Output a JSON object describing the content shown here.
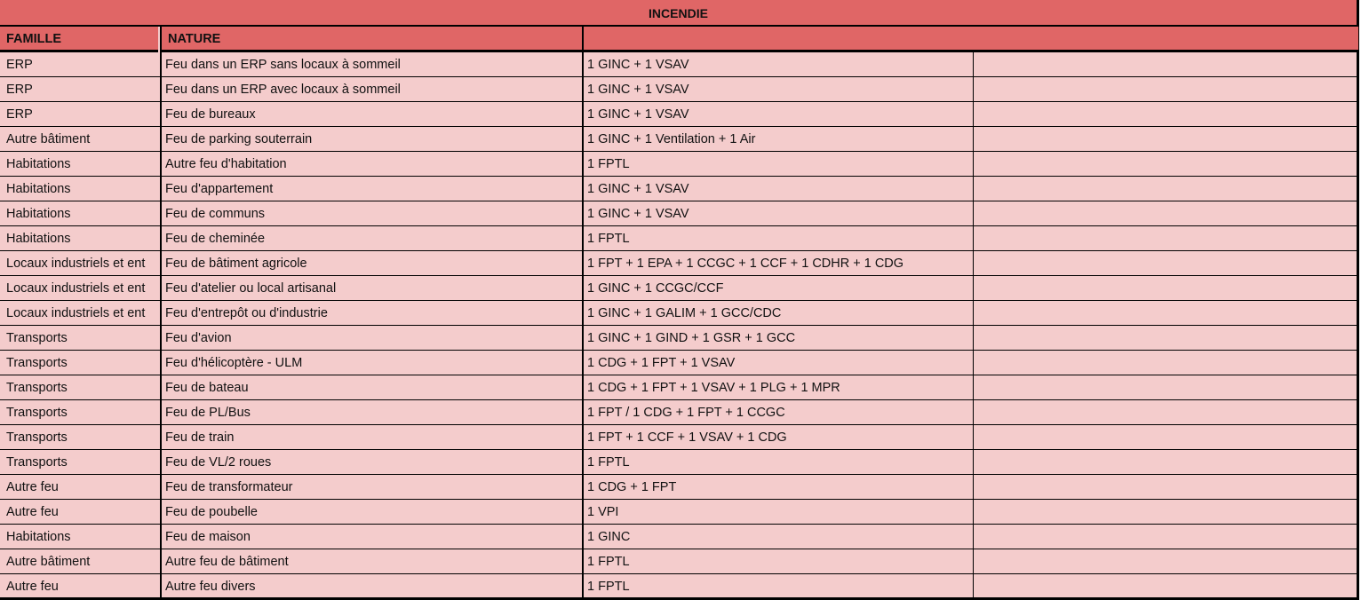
{
  "title": "INCENDIE",
  "headers": {
    "famille": "FAMILLE",
    "nature": "NATURE",
    "moyens": ""
  },
  "colors": {
    "header_bg": "#e06666",
    "row_bg": "#f4cccc",
    "border": "#000000"
  },
  "rows": [
    {
      "famille": "ERP",
      "nature": "Feu dans un ERP sans locaux à sommeil",
      "moyens": "1 GINC + 1 VSAV",
      "extra": ""
    },
    {
      "famille": "ERP",
      "nature": "Feu dans un ERP avec locaux à sommeil",
      "moyens": "1 GINC + 1 VSAV",
      "extra": ""
    },
    {
      "famille": "ERP",
      "nature": "Feu de bureaux",
      "moyens": "1 GINC + 1 VSAV",
      "extra": ""
    },
    {
      "famille": "Autre bâtiment",
      "nature": "Feu de parking souterrain",
      "moyens": "1 GINC + 1 Ventilation + 1 Air",
      "extra": ""
    },
    {
      "famille": "Habitations",
      "nature": "Autre feu d'habitation",
      "moyens": "1 FPTL",
      "extra": ""
    },
    {
      "famille": "Habitations",
      "nature": "Feu d'appartement",
      "moyens": "1 GINC + 1 VSAV",
      "extra": ""
    },
    {
      "famille": "Habitations",
      "nature": "Feu de communs",
      "moyens": "1 GINC + 1 VSAV",
      "extra": ""
    },
    {
      "famille": "Habitations",
      "nature": "Feu de cheminée",
      "moyens": "1 FPTL",
      "extra": ""
    },
    {
      "famille": "Locaux industriels et ent",
      "nature": "Feu de bâtiment agricole",
      "moyens": "1 FPT + 1 EPA + 1 CCGC + 1 CCF + 1 CDHR + 1 CDG",
      "extra": ""
    },
    {
      "famille": "Locaux industriels et ent",
      "nature": "Feu d'atelier ou local artisanal",
      "moyens": "1 GINC + 1 CCGC/CCF",
      "extra": ""
    },
    {
      "famille": "Locaux industriels et ent",
      "nature": "Feu d'entrepôt ou d'industrie",
      "moyens": "1 GINC + 1 GALIM + 1 GCC/CDC",
      "extra": ""
    },
    {
      "famille": "Transports",
      "nature": "Feu d'avion",
      "moyens": "1 GINC + 1 GIND + 1 GSR + 1 GCC",
      "extra": ""
    },
    {
      "famille": "Transports",
      "nature": "Feu d'hélicoptère - ULM",
      "moyens": "1 CDG + 1 FPT + 1 VSAV",
      "extra": ""
    },
    {
      "famille": "Transports",
      "nature": "Feu de bateau",
      "moyens": "1 CDG + 1 FPT + 1 VSAV + 1 PLG + 1 MPR",
      "extra": ""
    },
    {
      "famille": "Transports",
      "nature": "Feu de PL/Bus",
      "moyens": "1 FPT / 1 CDG + 1 FPT + 1 CCGC",
      "extra": ""
    },
    {
      "famille": "Transports",
      "nature": "Feu de train",
      "moyens": "1 FPT + 1 CCF + 1 VSAV + 1 CDG",
      "extra": ""
    },
    {
      "famille": "Transports",
      "nature": "Feu de VL/2 roues",
      "moyens": "1 FPTL",
      "extra": ""
    },
    {
      "famille": "Autre feu",
      "nature": "Feu de transformateur",
      "moyens": "1 CDG + 1 FPT",
      "extra": ""
    },
    {
      "famille": "Autre feu",
      "nature": "Feu de poubelle",
      "moyens": "1 VPI",
      "extra": ""
    },
    {
      "famille": "Habitations",
      "nature": "Feu de maison",
      "moyens": "1 GINC",
      "extra": ""
    },
    {
      "famille": "Autre bâtiment",
      "nature": "Autre feu de bâtiment",
      "moyens": "1 FPTL",
      "extra": ""
    },
    {
      "famille": "Autre feu",
      "nature": "Autre feu divers",
      "moyens": "1 FPTL",
      "extra": ""
    }
  ]
}
